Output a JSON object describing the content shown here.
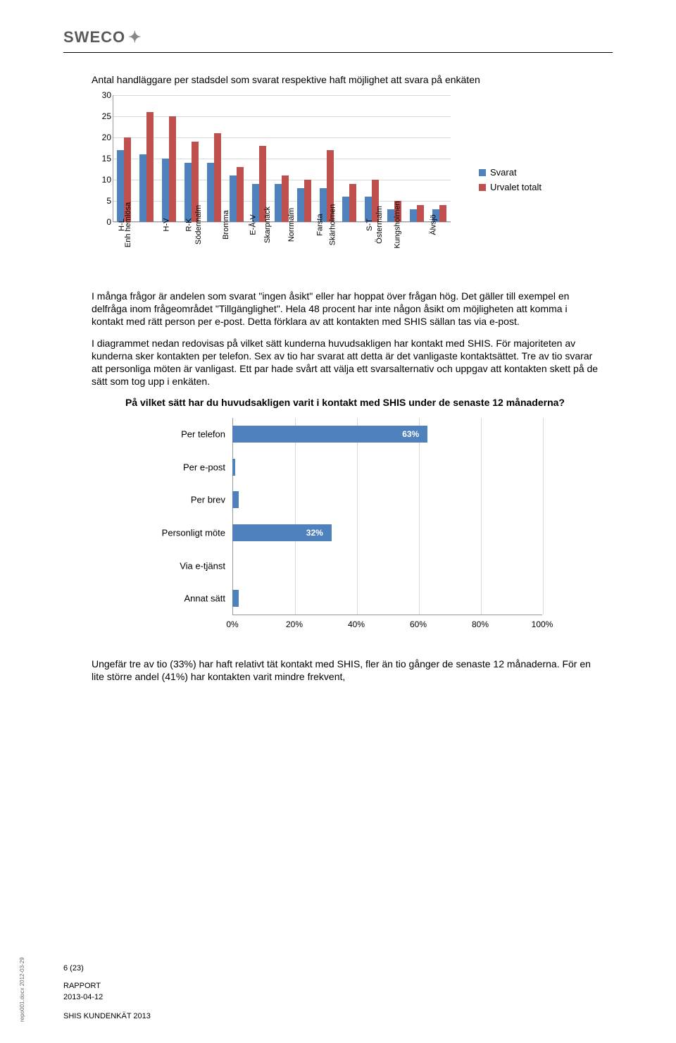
{
  "logo": {
    "text": "SWECO",
    "mark": "✦"
  },
  "chart1": {
    "type": "bar",
    "title": "Antal handläggare per stadsdel som svarat respektive haft möjlighet att svara på enkäten",
    "ylim": [
      0,
      30
    ],
    "ytick_step": 5,
    "yticks": [
      0,
      5,
      10,
      15,
      20,
      25,
      30
    ],
    "categories": [
      "H-L",
      "Enh hemlösa",
      "H-V",
      "R-K",
      "Södermalm",
      "Bromma",
      "E-Å-V",
      "Skarpnäck",
      "Norrmalm",
      "Farsta",
      "Skärholmen",
      "S-T",
      "Östermalm",
      "Kungsholmen",
      "Älvsjö"
    ],
    "series": [
      {
        "name": "Svarat",
        "color": "#4f81bd",
        "values": [
          17,
          16,
          15,
          14,
          14,
          11,
          9,
          9,
          8,
          8,
          6,
          6,
          3,
          3,
          3
        ]
      },
      {
        "name": "Urvalet totalt",
        "color": "#c0504d",
        "values": [
          20,
          26,
          25,
          19,
          21,
          13,
          18,
          11,
          10,
          17,
          9,
          10,
          5,
          4,
          4
        ]
      }
    ],
    "grid_color": "#d9d9d9",
    "axis_color": "#9a9a9a",
    "background_color": "#ffffff",
    "label_fontsize": 11,
    "tick_fontsize": 12
  },
  "paragraphs": [
    "I många frågor är andelen som svarat \"ingen åsikt\" eller har hoppat över frågan hög. Det gäller till exempel en delfråga inom frågeområdet \"Tillgänglighet\". Hela 48 procent har inte någon åsikt om möjligheten att komma i kontakt med rätt person per e-post. Detta förklara av att kontakten med SHIS sällan tas via e-post.",
    "I diagrammet nedan redovisas på vilket sätt kunderna huvudsakligen har kontakt med SHIS. För majoriteten av kunderna sker kontakten per telefon. Sex av tio har svarat att detta är det vanligaste kontaktsättet. Tre av tio svarar att personliga möten är vanligast. Ett par hade svårt att välja ett svarsalternativ och uppgav att kontakten skett på de sätt som tog upp i enkäten."
  ],
  "chart2": {
    "type": "bar-horizontal",
    "title": "På vilket sätt har du huvudsakligen varit i kontakt med SHIS under de senaste 12 månaderna?",
    "categories": [
      "Per telefon",
      "Per e-post",
      "Per brev",
      "Personligt möte",
      "Via e-tjänst",
      "Annat sätt"
    ],
    "values": [
      63,
      1,
      2,
      32,
      0,
      2
    ],
    "show_label": [
      true,
      false,
      false,
      true,
      false,
      false
    ],
    "bar_color": "#4f81bd",
    "xlim": [
      0,
      100
    ],
    "xtick_step": 20,
    "xticks": [
      "0%",
      "20%",
      "40%",
      "60%",
      "80%",
      "100%"
    ],
    "grid_color": "#d9d9d9",
    "axis_color": "#9a9a9a",
    "label_fontsize": 13,
    "bar_label_color": "#ffffff"
  },
  "closing_text": "Ungefär tre av tio (33%) har haft relativt tät kontakt med SHIS, fler än tio gånger de senaste 12 månaderna. För en lite större andel (41%) har kontakten varit mindre frekvent,",
  "footer": {
    "page": "6 (23)",
    "report": "RAPPORT",
    "date": "2013-04-12",
    "doc_title": "SHIS KUNDENKÄT 2013"
  },
  "side_note": "repo001.docx 2012-03-29"
}
